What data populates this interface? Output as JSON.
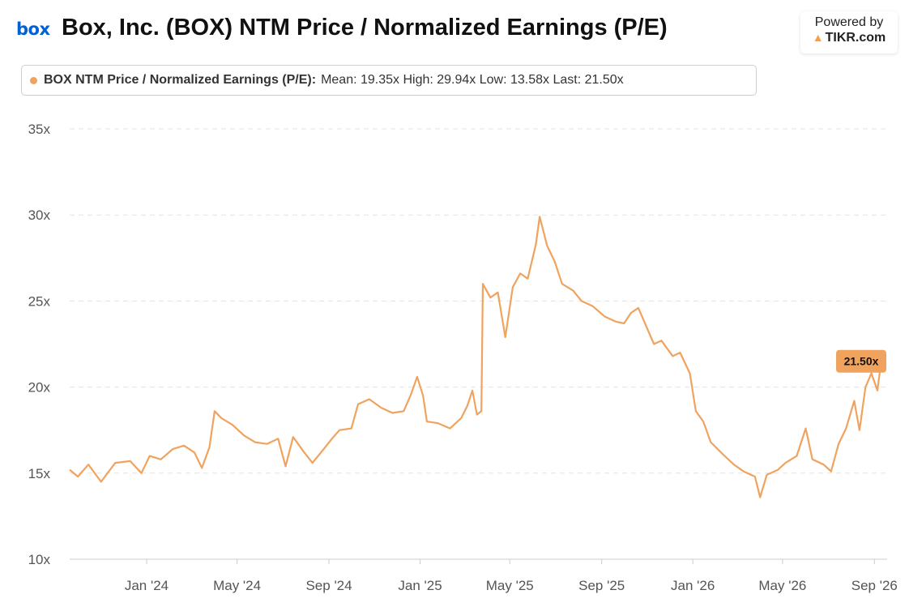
{
  "header": {
    "logo_text": "box",
    "title": "Box, Inc. (BOX) NTM Price / Normalized Earnings (P/E)",
    "powered_by": "Powered by",
    "brand": "TIKR.com",
    "brand_icon": "tikr-triangle-icon"
  },
  "legend": {
    "series_name": "BOX NTM Price / Normalized Earnings (P/E):",
    "stats_text": "Mean: 19.35x High: 29.94x Low: 13.58x Last: 21.50x"
  },
  "chart_data": {
    "type": "line",
    "title": "Box, Inc. (BOX) NTM Price / Normalized Earnings (P/E)",
    "xlabel": "",
    "ylabel": "",
    "ylim": [
      10,
      35
    ],
    "y_ticks": [
      "35x",
      "30x",
      "25x",
      "20x",
      "15x",
      "10x"
    ],
    "y_tick_values": [
      35,
      30,
      25,
      20,
      15,
      10
    ],
    "x_ticks": [
      "Jan '24",
      "May '24",
      "Sep '24",
      "Jan '25",
      "May '25",
      "Sep '25",
      "Jan '26",
      "May '26",
      "Sep '26"
    ],
    "x_tick_dates": [
      "2024-01-01",
      "2024-05-01",
      "2024-09-01",
      "2025-01-01",
      "2025-05-01",
      "2025-09-01",
      "2026-01-01",
      "2026-05-01",
      "2026-09-01"
    ],
    "grid": "horizontal-dashed",
    "series": [
      {
        "name": "BOX NTM Price / Normalized Earnings (P/E)",
        "color": "#f0a35e",
        "stats": {
          "mean": 19.35,
          "high": 29.94,
          "low": 13.58,
          "last": 21.5
        },
        "points": [
          [
            "2023-09-20",
            15.2
          ],
          [
            "2023-10-01",
            14.8
          ],
          [
            "2023-10-15",
            15.5
          ],
          [
            "2023-11-01",
            14.5
          ],
          [
            "2023-11-20",
            15.6
          ],
          [
            "2023-12-10",
            15.7
          ],
          [
            "2023-12-25",
            15.0
          ],
          [
            "2024-01-05",
            16.0
          ],
          [
            "2024-01-20",
            15.8
          ],
          [
            "2024-02-05",
            16.4
          ],
          [
            "2024-02-20",
            16.6
          ],
          [
            "2024-03-05",
            16.2
          ],
          [
            "2024-03-15",
            15.3
          ],
          [
            "2024-03-25",
            16.5
          ],
          [
            "2024-04-01",
            18.6
          ],
          [
            "2024-04-10",
            18.2
          ],
          [
            "2024-04-25",
            17.8
          ],
          [
            "2024-05-10",
            17.2
          ],
          [
            "2024-05-25",
            16.8
          ],
          [
            "2024-06-10",
            16.7
          ],
          [
            "2024-06-25",
            17.0
          ],
          [
            "2024-07-05",
            15.4
          ],
          [
            "2024-07-15",
            17.1
          ],
          [
            "2024-07-30",
            16.2
          ],
          [
            "2024-08-10",
            15.6
          ],
          [
            "2024-08-25",
            16.4
          ],
          [
            "2024-09-05",
            17.0
          ],
          [
            "2024-09-15",
            17.5
          ],
          [
            "2024-10-01",
            17.6
          ],
          [
            "2024-10-10",
            19.0
          ],
          [
            "2024-10-25",
            19.3
          ],
          [
            "2024-11-10",
            18.8
          ],
          [
            "2024-11-25",
            18.5
          ],
          [
            "2024-12-10",
            18.6
          ],
          [
            "2024-12-20",
            19.6
          ],
          [
            "2024-12-28",
            20.6
          ],
          [
            "2025-01-05",
            19.5
          ],
          [
            "2025-01-10",
            18.0
          ],
          [
            "2025-01-25",
            17.9
          ],
          [
            "2025-02-10",
            17.6
          ],
          [
            "2025-02-25",
            18.2
          ],
          [
            "2025-03-05",
            18.9
          ],
          [
            "2025-03-12",
            19.8
          ],
          [
            "2025-03-18",
            18.4
          ],
          [
            "2025-03-24",
            18.6
          ],
          [
            "2025-03-26",
            26.0
          ],
          [
            "2025-04-05",
            25.2
          ],
          [
            "2025-04-15",
            25.5
          ],
          [
            "2025-04-25",
            22.9
          ],
          [
            "2025-05-05",
            25.8
          ],
          [
            "2025-05-15",
            26.6
          ],
          [
            "2025-05-25",
            26.3
          ],
          [
            "2025-06-05",
            28.3
          ],
          [
            "2025-06-10",
            29.9
          ],
          [
            "2025-06-20",
            28.2
          ],
          [
            "2025-06-30",
            27.3
          ],
          [
            "2025-07-10",
            26.0
          ],
          [
            "2025-07-25",
            25.6
          ],
          [
            "2025-08-05",
            25.0
          ],
          [
            "2025-08-20",
            24.7
          ],
          [
            "2025-09-05",
            24.1
          ],
          [
            "2025-09-20",
            23.8
          ],
          [
            "2025-10-01",
            23.7
          ],
          [
            "2025-10-10",
            24.3
          ],
          [
            "2025-10-20",
            24.6
          ],
          [
            "2025-11-01",
            23.4
          ],
          [
            "2025-11-10",
            22.5
          ],
          [
            "2025-11-20",
            22.7
          ],
          [
            "2025-12-05",
            21.8
          ],
          [
            "2025-12-15",
            22.0
          ],
          [
            "2025-12-28",
            20.8
          ],
          [
            "2026-01-05",
            18.6
          ],
          [
            "2026-01-15",
            18.0
          ],
          [
            "2026-01-25",
            16.8
          ],
          [
            "2026-02-10",
            16.1
          ],
          [
            "2026-02-25",
            15.5
          ],
          [
            "2026-03-10",
            15.1
          ],
          [
            "2026-03-25",
            14.8
          ],
          [
            "2026-04-01",
            13.6
          ],
          [
            "2026-04-10",
            14.9
          ],
          [
            "2026-04-25",
            15.2
          ],
          [
            "2026-05-05",
            15.6
          ],
          [
            "2026-05-20",
            16.0
          ],
          [
            "2026-06-01",
            17.6
          ],
          [
            "2026-06-10",
            15.8
          ],
          [
            "2026-06-25",
            15.5
          ],
          [
            "2026-07-05",
            15.1
          ],
          [
            "2026-07-15",
            16.7
          ],
          [
            "2026-07-25",
            17.6
          ],
          [
            "2026-08-05",
            19.2
          ],
          [
            "2026-08-12",
            17.5
          ],
          [
            "2026-08-20",
            20.0
          ],
          [
            "2026-08-28",
            20.8
          ],
          [
            "2026-09-05",
            19.8
          ],
          [
            "2026-09-10",
            21.5
          ]
        ]
      }
    ],
    "last_label": "21.50x"
  }
}
